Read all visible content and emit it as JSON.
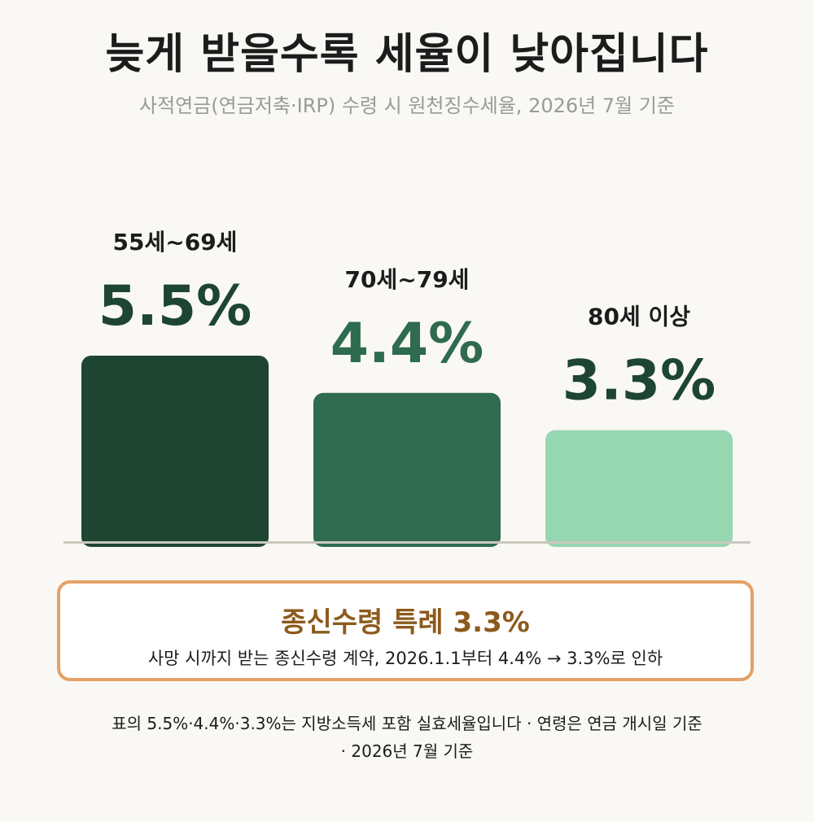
{
  "header": {
    "title": "늦게 받을수록 세율이 낮아집니다",
    "subtitle": "사적연금(연금저축·IRP) 수령 시 원천징수세율, 2026년 7월 기준"
  },
  "chart_data": {
    "type": "bar",
    "categories": [
      "55세~69세",
      "70세~79세",
      "80세 이상"
    ],
    "values": [
      5.5,
      4.4,
      3.3
    ],
    "value_labels": [
      "5.5%",
      "4.4%",
      "3.3%"
    ],
    "colors": [
      "#1d4532",
      "#2e6b4f",
      "#96d6b0"
    ],
    "label_colors": [
      "#1d4532",
      "#2e6b4f",
      "#1d4532"
    ],
    "ylim": [
      0,
      5.5
    ],
    "grid": false
  },
  "special": {
    "title": "종신수령 특례 3.3%",
    "description": "사망 시까지 받는 종신수령 계약, 2026.1.1부터 4.4% → 3.3%로 인하"
  },
  "footnote": {
    "line1": "표의 5.5%·4.4%·3.3%는 지방소득세 포함 실효세율입니다 · 연령은 연금 개시일 기준",
    "line2": "· 2026년 7월 기준"
  }
}
